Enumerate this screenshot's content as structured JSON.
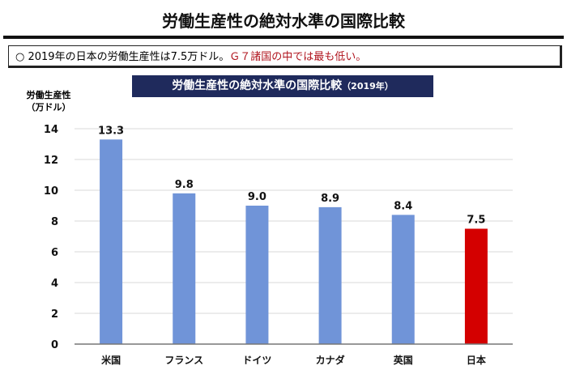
{
  "page_title": "労働生産性の絶対水準の国際比較",
  "note": {
    "bullet": "○",
    "text": "2019年の日本の労働生産性は7.5万ドル。",
    "highlight": "Ｇ７諸国の中では最も低い。"
  },
  "colors": {
    "bar": "#7094d8",
    "highlight_bar": "#d40000",
    "banner": "#1f2a5c",
    "grid": "#d9d9d9"
  },
  "chart_data": {
    "type": "bar",
    "title": "労働生産性の絶対水準の国際比較",
    "subtitle": "（2019年）",
    "ylabel_line1": "労働生産性",
    "ylabel_line2": "（万ドル）",
    "xlabel": "",
    "ylim": [
      0,
      14
    ],
    "yticks": [
      0,
      2,
      4,
      6,
      8,
      10,
      12,
      14
    ],
    "categories": [
      "米国",
      "フランス",
      "ドイツ",
      "カナダ",
      "英国",
      "日本"
    ],
    "values": [
      13.3,
      9.8,
      9.0,
      8.9,
      8.4,
      7.5
    ],
    "value_labels": [
      "13.3",
      "9.8",
      "9.0",
      "8.9",
      "8.4",
      "7.5"
    ],
    "highlight": "日本",
    "grid": true
  }
}
